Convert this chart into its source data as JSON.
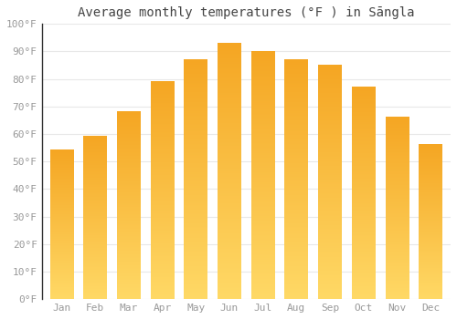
{
  "title": "Average monthly temperatures (°F ) in Sāngla",
  "months": [
    "Jan",
    "Feb",
    "Mar",
    "Apr",
    "May",
    "Jun",
    "Jul",
    "Aug",
    "Sep",
    "Oct",
    "Nov",
    "Dec"
  ],
  "values": [
    54,
    59,
    68,
    79,
    87,
    93,
    90,
    87,
    85,
    77,
    66,
    56
  ],
  "bar_color_top": "#F5A623",
  "bar_color_bottom": "#FFD966",
  "ylim": [
    0,
    100
  ],
  "yticks": [
    0,
    10,
    20,
    30,
    40,
    50,
    60,
    70,
    80,
    90,
    100
  ],
  "ytick_labels": [
    "0°F",
    "10°F",
    "20°F",
    "30°F",
    "40°F",
    "50°F",
    "60°F",
    "70°F",
    "80°F",
    "90°F",
    "100°F"
  ],
  "background_color": "#ffffff",
  "grid_color": "#e8e8e8",
  "title_fontsize": 10,
  "tick_fontsize": 8,
  "bar_width": 0.7
}
